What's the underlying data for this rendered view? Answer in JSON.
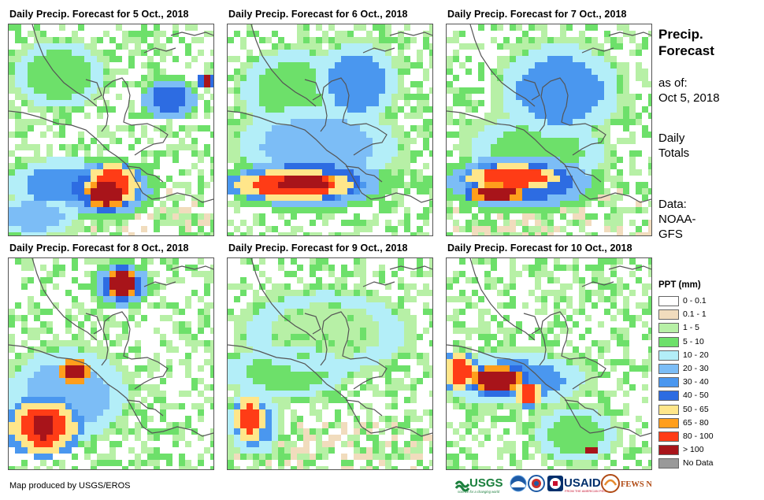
{
  "panels": [
    {
      "title": "Daily Precip. Forecast for 5 Oct., 2018"
    },
    {
      "title": "Daily Precip. Forecast for 6 Oct., 2018"
    },
    {
      "title": "Daily Precip. Forecast for 7 Oct., 2018"
    },
    {
      "title": "Daily Precip. Forecast for 8 Oct., 2018"
    },
    {
      "title": "Daily Precip. Forecast for 9 Oct., 2018"
    },
    {
      "title": "Daily Precip. Forecast for 10 Oct., 2018"
    }
  ],
  "sidebar": {
    "title_line1": "Precip.",
    "title_line2": "Forecast",
    "asof_line1": "as of:",
    "asof_line2": "Oct 5, 2018",
    "daily_line1": "Daily",
    "daily_line2": "Totals",
    "data_line1": "Data:",
    "data_line2": "NOAA-",
    "data_line3": "GFS"
  },
  "legend": {
    "title": "PPT (mm)",
    "items": [
      {
        "label": "0 - 0.1",
        "color": "#ffffff"
      },
      {
        "label": "0.1 - 1",
        "color": "#f1dcbd"
      },
      {
        "label": "1 - 5",
        "color": "#b7f0a6"
      },
      {
        "label": "5 - 10",
        "color": "#6de06a"
      },
      {
        "label": "10 - 20",
        "color": "#b3eef8"
      },
      {
        "label": "20 - 30",
        "color": "#7cbdf6"
      },
      {
        "label": "30 - 40",
        "color": "#4a97ef"
      },
      {
        "label": "40 - 50",
        "color": "#2d6ce2"
      },
      {
        "label": "50 - 65",
        "color": "#ffe68a"
      },
      {
        "label": "65 - 80",
        "color": "#ff9e1c"
      },
      {
        "label": "80 - 100",
        "color": "#ff3c16"
      },
      {
        "label": "> 100",
        "color": "#a8141a"
      },
      {
        "label": "No Data",
        "color": "#999999"
      }
    ]
  },
  "credit": "Map produced by USGS/EROS",
  "logos": {
    "usgs": "USGS",
    "usgs_tagline": "science for a changing world",
    "usaid": "USAID",
    "usaid_tagline": "FROM THE AMERICAN PEOPLE",
    "fewsnet": "FEWS NET"
  }
}
